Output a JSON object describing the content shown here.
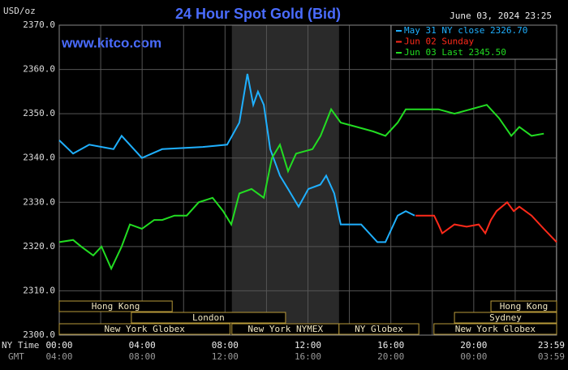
{
  "chart_data": {
    "type": "line",
    "title": "24 Hour Spot Gold (Bid)",
    "unit_label": "USD/oz",
    "timestamp": "June 03, 2024 23:25",
    "watermark": "www.kitco.com",
    "x_row_label": "NY Time",
    "x2_row_label": "GMT",
    "xlim": [
      0,
      24
    ],
    "xticks": [
      {
        "value": 0,
        "label": "00:00"
      },
      {
        "value": 4,
        "label": "04:00"
      },
      {
        "value": 8,
        "label": "08:00"
      },
      {
        "value": 12,
        "label": "12:00"
      },
      {
        "value": 16,
        "label": "16:00"
      },
      {
        "value": 20,
        "label": "20:00"
      },
      {
        "value": 23.983,
        "label": "23:59"
      }
    ],
    "x2ticklabels": [
      "04:00",
      "08:00",
      "12:00",
      "16:00",
      "20:00",
      "00:00",
      "03:59"
    ],
    "xminor": [
      2,
      6,
      10,
      14,
      18,
      22
    ],
    "ylim": [
      2300,
      2370
    ],
    "yticks": [
      {
        "value": 2300,
        "label": "2300.0"
      },
      {
        "value": 2310,
        "label": "2310.0"
      },
      {
        "value": 2320,
        "label": "2320.0"
      },
      {
        "value": 2330,
        "label": "2330.0"
      },
      {
        "value": 2340,
        "label": "2340.0"
      },
      {
        "value": 2350,
        "label": "2350.0"
      },
      {
        "value": 2360,
        "label": "2360.0"
      },
      {
        "value": 2370,
        "label": "2370.0"
      }
    ],
    "grid": true,
    "shade": [
      8.33,
      13.5
    ],
    "series": [
      {
        "name": "May 31 NY close 2326.70",
        "color": "#1fb0ff",
        "x": [
          0,
          0.67,
          1.45,
          2.62,
          3.01,
          3.99,
          4.97,
          6.93,
          8.1,
          8.69,
          9.08,
          9.36,
          9.59,
          9.87,
          10.18,
          10.65,
          11.04,
          11.55,
          12.02,
          12.6,
          12.88,
          13.27,
          13.58,
          14.57,
          15.35,
          15.74,
          16.33,
          16.72,
          17.15
        ],
        "values": [
          2344,
          2341,
          2343,
          2342,
          2345,
          2340,
          2342,
          2342.5,
          2343,
          2348,
          2359,
          2352,
          2355,
          2352,
          2342,
          2336,
          2333,
          2329,
          2333,
          2334,
          2336,
          2332,
          2325,
          2325,
          2321,
          2321,
          2327,
          2328,
          2327
        ]
      },
      {
        "name": "Jun 02 Sunday",
        "color": "#ff2a1a",
        "x": [
          17.19,
          18.09,
          18.29,
          18.48,
          19.07,
          19.66,
          20.24,
          20.56,
          20.83,
          21.1,
          21.61,
          21.93,
          22.2,
          22.79,
          23.38,
          24
        ],
        "values": [
          2327,
          2327,
          2325,
          2323,
          2325,
          2324.5,
          2325,
          2323,
          2326,
          2328,
          2330,
          2328,
          2329,
          2327,
          2324,
          2321
        ]
      },
      {
        "name": "Jun 03 Last 2345.50",
        "color": "#22dd22",
        "x": [
          0,
          0.67,
          1.06,
          1.64,
          2.04,
          2.51,
          3.01,
          3.41,
          3.99,
          4.58,
          4.97,
          5.56,
          6.15,
          6.73,
          7.4,
          7.91,
          8.3,
          8.69,
          9.28,
          9.87,
          10.26,
          10.65,
          11.04,
          11.43,
          12.22,
          12.61,
          13.12,
          13.58,
          14.37,
          15.15,
          15.74,
          16.33,
          16.72,
          17.5,
          18.29,
          19.07,
          19.85,
          20.63,
          21.22,
          21.81,
          22.2,
          22.79,
          23.38
        ],
        "values": [
          2321,
          2321.5,
          2320,
          2318,
          2320,
          2315,
          2320,
          2325,
          2324,
          2326,
          2326,
          2327,
          2327,
          2330,
          2331,
          2328,
          2325,
          2332,
          2333,
          2331,
          2340,
          2343,
          2337,
          2341,
          2342,
          2345,
          2351,
          2348,
          2347,
          2346,
          2345,
          2348,
          2351,
          2351,
          2351,
          2350,
          2351,
          2352,
          2349,
          2345,
          2347,
          2345,
          2345.5
        ]
      }
    ],
    "session_rows": [
      [
        {
          "label": "Hong Kong",
          "start": 0,
          "end": 5.45
        },
        {
          "label": "Hong Kong",
          "start": 20.83,
          "end": 24
        }
      ],
      [
        {
          "label": "London",
          "start": 3.48,
          "end": 10.92
        },
        {
          "label": "Sydney",
          "start": 19.07,
          "end": 24
        }
      ],
      [
        {
          "label": "New York Globex",
          "start": 0,
          "end": 8.24
        },
        {
          "label": "New York NYMEX",
          "start": 8.33,
          "end": 13.5
        },
        {
          "label": "NY Globex",
          "start": 13.5,
          "end": 17.35
        },
        {
          "label": "New York Globex",
          "start": 18.08,
          "end": 24
        }
      ]
    ]
  }
}
